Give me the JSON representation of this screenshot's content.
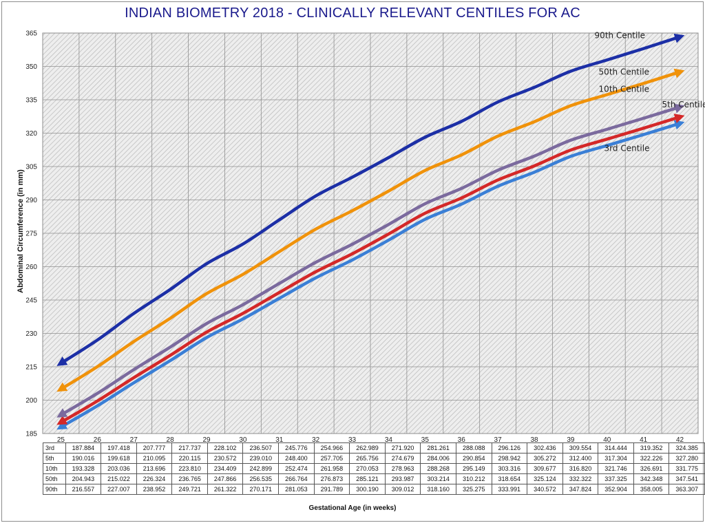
{
  "chart_data": {
    "type": "line",
    "title": "INDIAN BIOMETRY 2018 - CLINICALLY RELEVANT CENTILES FOR AC",
    "xlabel": "Gestational Age (in weeks)",
    "ylabel": "Abdominal Circumference (in mm)",
    "x": [
      25,
      26,
      27,
      28,
      29,
      30,
      31,
      32,
      33,
      34,
      35,
      36,
      37,
      38,
      39,
      40,
      41,
      42
    ],
    "ylim": [
      185,
      365
    ],
    "yticks": [
      185,
      200,
      215,
      230,
      245,
      260,
      275,
      290,
      305,
      320,
      335,
      350,
      365
    ],
    "grid": true,
    "background_pattern": "diagonal hatch",
    "series": [
      {
        "name": "3rd Centile",
        "table_label": "3rd",
        "color": "#3a7fd6",
        "values": [
          187.884,
          197.418,
          207.777,
          217.737,
          228.102,
          236.507,
          245.776,
          254.966,
          262.989,
          271.92,
          281.261,
          288.088,
          296.126,
          302.436,
          309.554,
          314.444,
          319.352,
          324.385
        ],
        "table_values": [
          "187.884",
          "197.418",
          "207.777",
          "217.737",
          "228.102",
          "236.507",
          "245.776",
          "254.966",
          "262.989",
          "271.920",
          "281.261",
          "288.088",
          "296.126",
          "302.436",
          "309.554",
          "314.444",
          "319.352",
          "324.385"
        ]
      },
      {
        "name": "5th Centile",
        "table_label": "5th",
        "color": "#d42828",
        "values": [
          190.016,
          199.618,
          210.095,
          220.115,
          230.572,
          239.01,
          248.4,
          257.705,
          265.756,
          274.679,
          284.006,
          290.854,
          298.942,
          305.272,
          312.4,
          317.304,
          322.226,
          327.28
        ],
        "table_values": [
          "190.016",
          "199.618",
          "210.095",
          "220.115",
          "230.572",
          "239.010",
          "248.400",
          "257.705",
          "265.756",
          "274.679",
          "284.006",
          "290.854",
          "298.942",
          "305.272",
          "312.400",
          "317.304",
          "322.226",
          "327.280"
        ]
      },
      {
        "name": "10th Centile",
        "table_label": "10th",
        "color": "#7b6a9e",
        "values": [
          193.328,
          203.036,
          213.696,
          223.81,
          234.409,
          242.899,
          252.474,
          261.958,
          270.053,
          278.963,
          288.268,
          295.149,
          303.316,
          309.677,
          316.82,
          321.746,
          326.691,
          331.775
        ],
        "table_values": [
          "193.328",
          "203.036",
          "213.696",
          "223.810",
          "234.409",
          "242.899",
          "252.474",
          "261.958",
          "270.053",
          "278.963",
          "288.268",
          "295.149",
          "303.316",
          "309.677",
          "316.820",
          "321.746",
          "326.691",
          "331.775"
        ]
      },
      {
        "name": "50th Centile",
        "table_label": "50th",
        "color": "#f0920a",
        "values": [
          204.943,
          215.022,
          226.324,
          236.765,
          247.866,
          256.535,
          266.764,
          276.873,
          285.121,
          293.987,
          303.214,
          310.212,
          318.654,
          325.124,
          332.322,
          337.325,
          342.348,
          347.541
        ],
        "table_values": [
          "204.943",
          "215.022",
          "226.324",
          "236.765",
          "247.866",
          "256.535",
          "266.764",
          "276.873",
          "285.121",
          "293.987",
          "303.214",
          "310.212",
          "318.654",
          "325.124",
          "332.322",
          "337.325",
          "342.348",
          "347.541"
        ]
      },
      {
        "name": "90th Centile",
        "table_label": "90th",
        "color": "#1c2fa6",
        "values": [
          216.557,
          227.007,
          238.952,
          249.721,
          261.322,
          270.171,
          281.053,
          291.789,
          300.19,
          309.012,
          318.16,
          325.275,
          333.991,
          340.572,
          347.824,
          352.904,
          358.005,
          363.307
        ],
        "table_values": [
          "216.557",
          "227.007",
          "238.952",
          "249.721",
          "261.322",
          "270.171",
          "281.053",
          "291.789",
          "300.190",
          "309.012",
          "318.160",
          "325.275",
          "333.991",
          "340.572",
          "347.824",
          "352.904",
          "358.005",
          "363.307"
        ]
      }
    ]
  }
}
